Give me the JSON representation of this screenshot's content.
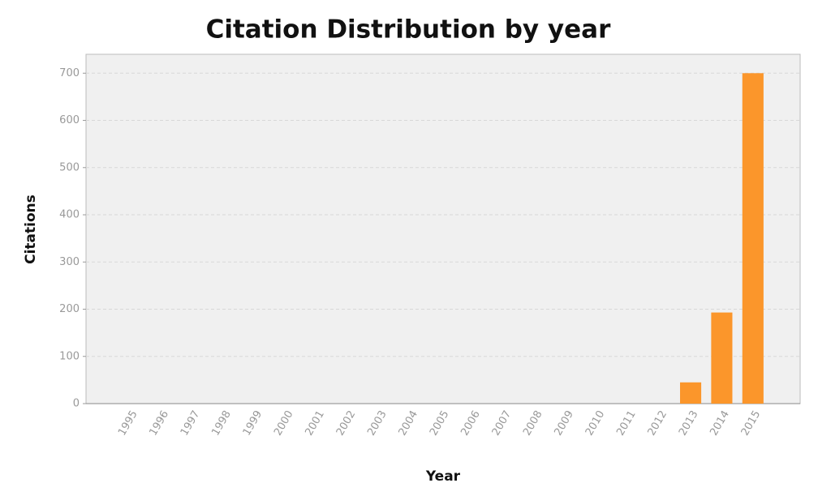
{
  "chart_data": {
    "type": "bar",
    "title": "Citation Distribution by year",
    "x_label": "Year",
    "y_label": "Citations",
    "categories": [
      "1995",
      "1996",
      "1997",
      "1998",
      "1999",
      "2000",
      "2001",
      "2002",
      "2003",
      "2004",
      "2005",
      "2006",
      "2007",
      "2008",
      "2009",
      "2010",
      "2011",
      "2012",
      "2013",
      "2014",
      "2015"
    ],
    "values": [
      0,
      0,
      0,
      0,
      0,
      0,
      0,
      0,
      0,
      0,
      0,
      0,
      0,
      0,
      0,
      0,
      0,
      0,
      45,
      193,
      700
    ],
    "color": "#fb962b",
    "ylim": [
      0,
      740
    ],
    "yticks": [
      0,
      100,
      200,
      300,
      400,
      500,
      600,
      700
    ],
    "grid": true
  }
}
